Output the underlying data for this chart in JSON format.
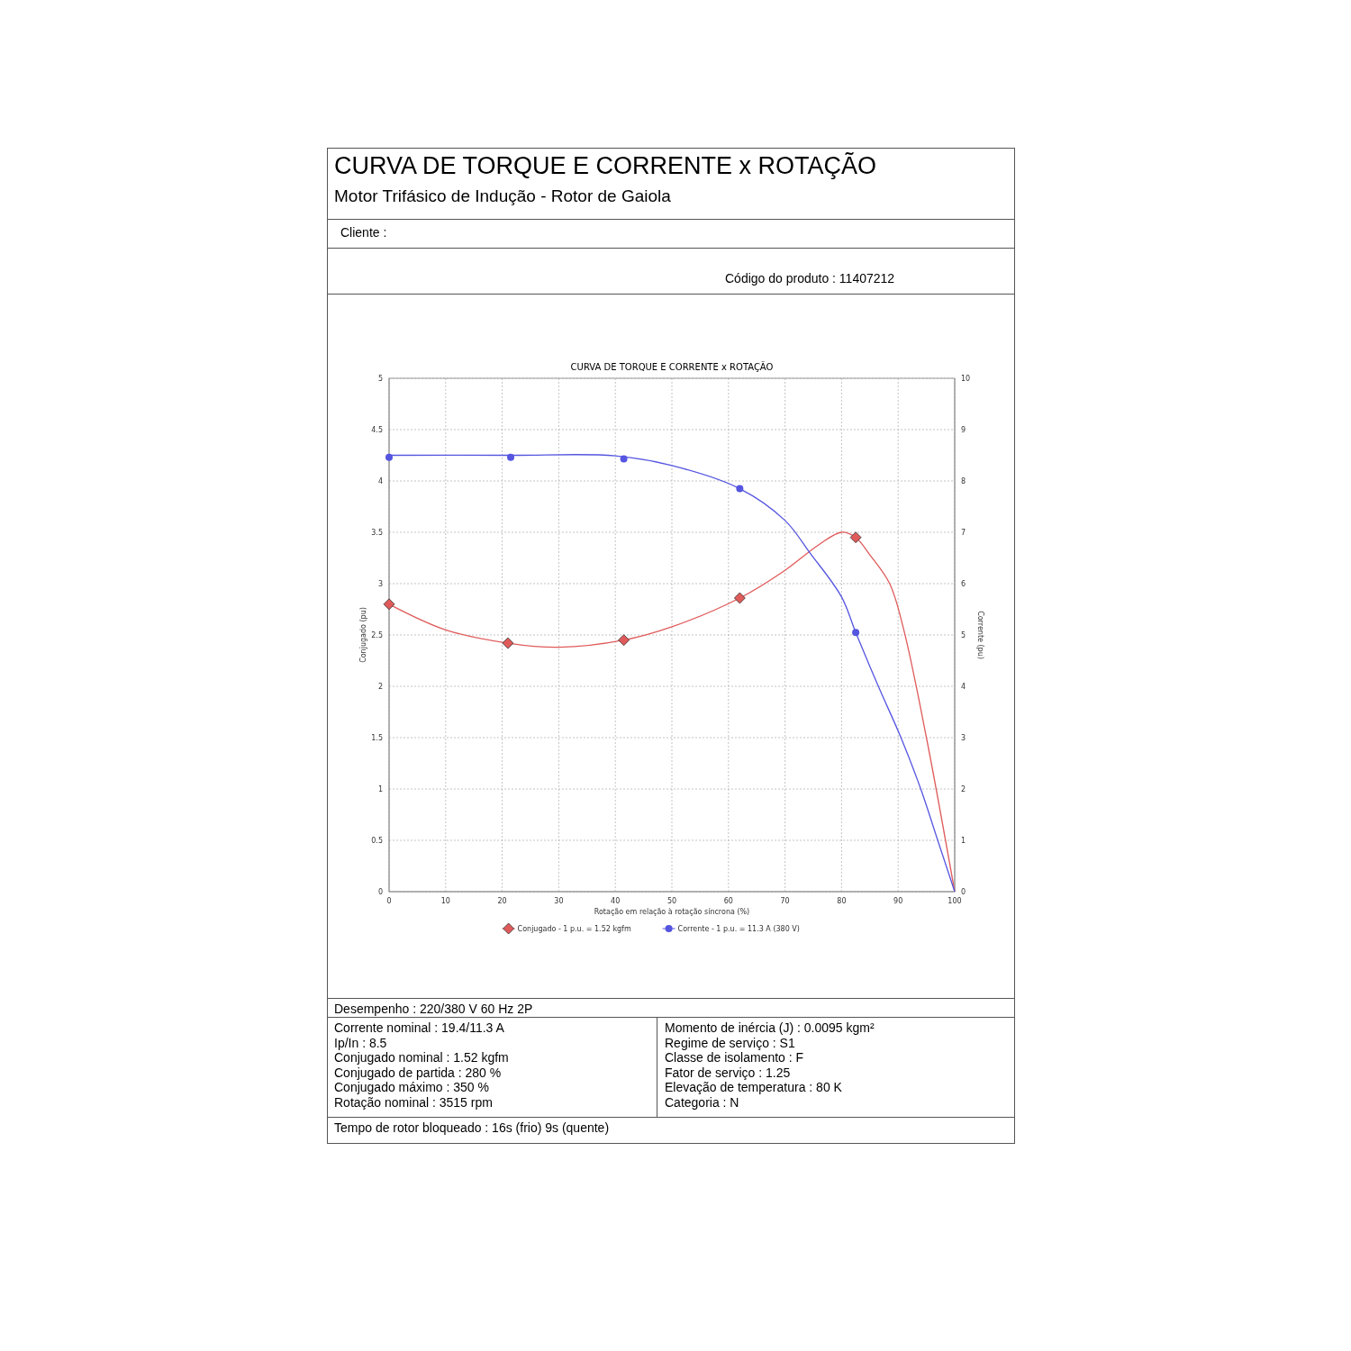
{
  "chart_data": {
    "type": "line",
    "title": "CURVA DE TORQUE E CORRENTE x ROTAÇÃO",
    "xlabel": "Rotação em relação à rotação síncrona (%)",
    "ylabel": "Conjugado (pu)",
    "y2label": "Corrente (pu)",
    "xlim": [
      0,
      100
    ],
    "xticks": [
      0,
      10,
      20,
      30,
      40,
      50,
      60,
      70,
      80,
      90,
      100
    ],
    "ylim": [
      0,
      5
    ],
    "yticks": [
      0,
      0.5,
      1,
      1.5,
      2,
      2.5,
      3,
      3.5,
      4,
      4.5,
      5
    ],
    "y2lim": [
      0,
      10
    ],
    "y2ticks": [
      0,
      1,
      2,
      3,
      4,
      5,
      6,
      7,
      8,
      9,
      10
    ],
    "grid": true,
    "legend": "bottom",
    "line_style": "solid",
    "series": [
      {
        "color": "#e05a5a",
        "marker": "none",
        "x": [
          0,
          10,
          21,
          30,
          41.5,
          50,
          62,
          70,
          76,
          80,
          82.5,
          85,
          88.5,
          91,
          95,
          100
        ],
        "values": [
          2.8,
          2.55,
          2.42,
          2.38,
          2.45,
          2.58,
          2.86,
          3.13,
          3.38,
          3.5,
          3.45,
          3.28,
          3.0,
          2.55,
          1.5,
          0
        ]
      },
      {
        "axis": "y2",
        "color": "#5555e0",
        "marker": "none",
        "x": [
          0,
          21.5,
          40,
          50,
          62,
          70,
          74.4,
          80,
          82.5,
          86.5,
          90.5,
          94,
          97,
          100
        ],
        "values": [
          8.5,
          8.5,
          8.49,
          8.3,
          7.85,
          7.23,
          6.6,
          5.74,
          5.05,
          4.0,
          3.0,
          2.0,
          1.0,
          0
        ]
      },
      {
        "type": "scatter",
        "name": "Conjugado - 1 p.u. = 1.52 kgfm",
        "color": "#e05a5a",
        "marker": "diamond",
        "x": [
          0,
          21,
          41.5,
          62,
          82.5
        ],
        "values": [
          2.8,
          2.42,
          2.45,
          2.86,
          3.45
        ]
      },
      {
        "type": "scatter",
        "name": "Corrente - 1 p.u. = 11.3 A (380 V)",
        "axis": "y2",
        "color": "#5555e0",
        "marker": "circle",
        "x": [
          0,
          21.5,
          41.5,
          62,
          82.5
        ],
        "values": [
          8.46,
          8.46,
          8.43,
          7.85,
          5.05
        ]
      }
    ],
    "annotations": [
      "CURVA DE TORQUE E CORRENTE x ROTAÇÃO",
      "Motor Trifásico de Indução - Rotor de Gaiola",
      "Cliente :",
      "Código do produto : 11407212",
      "Desempenho : 220/380 V 60 Hz 2P",
      "Corrente nominal : 19.4/11.3 A",
      "Ip/In : 8.5",
      "Conjugado nominal : 1.52 kgfm",
      "Conjugado de partida : 280 %",
      "Conjugado máximo : 350 %",
      "Rotação nominal : 3515 rpm",
      "Momento de inércia (J) : 0.0095 kgm²",
      "Regime de serviço : S1",
      "Classe de isolamento : F",
      "Fator de serviço : 1.25",
      "Elevação de temperatura : 80 K",
      "Categoria : N",
      "Tempo de rotor bloqueado : 16s (frio) 9s (quente)"
    ]
  }
}
